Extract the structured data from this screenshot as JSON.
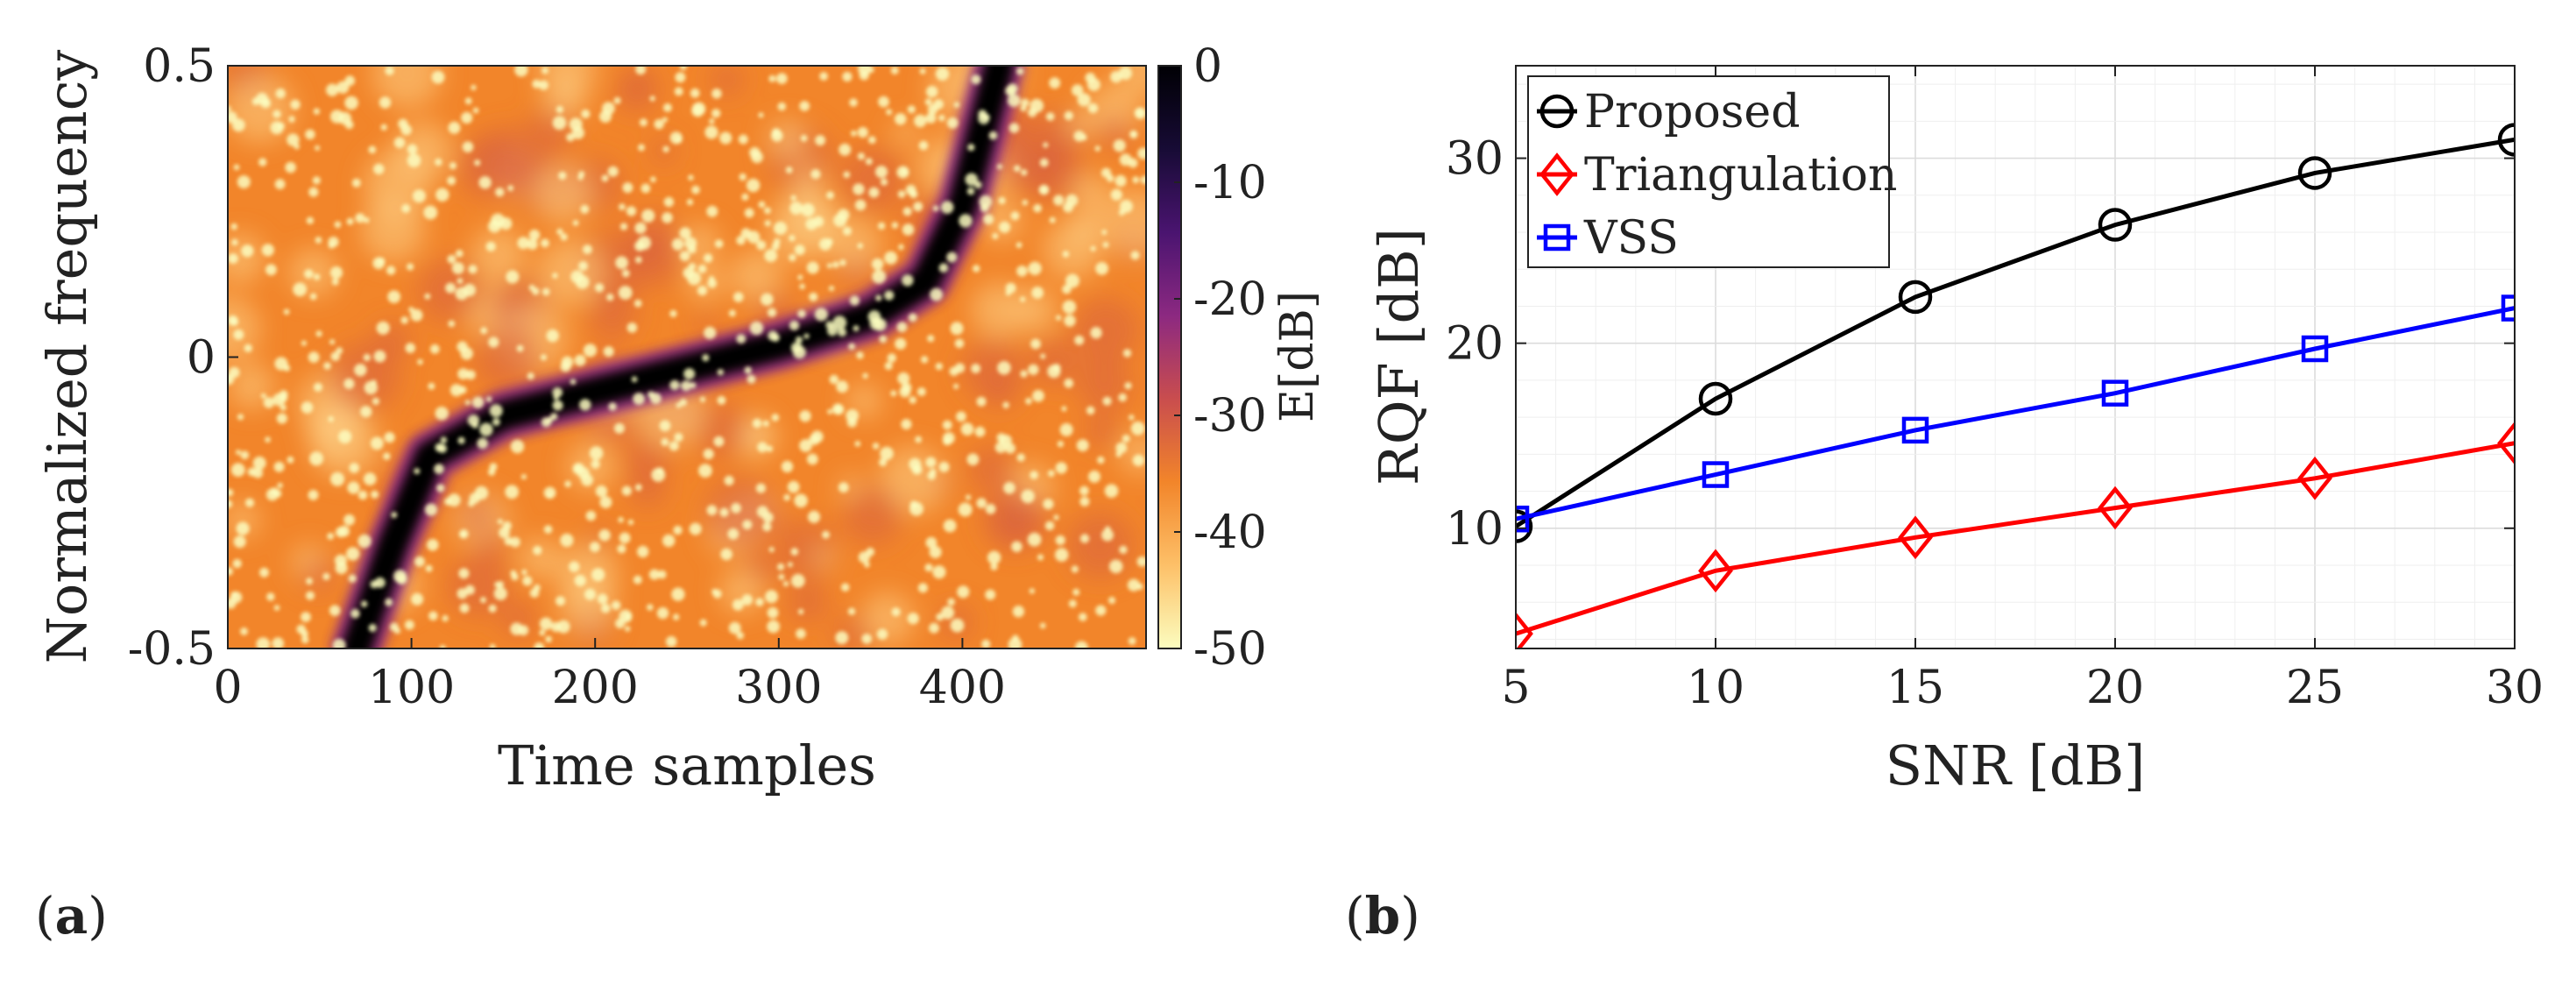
{
  "panel_labels": {
    "a": "a",
    "b": "b"
  },
  "chart_data": [
    {
      "type": "heatmap",
      "panel": "a",
      "title": "",
      "xlabel": "Time samples",
      "ylabel": "Normalized frequency",
      "xlim": [
        0,
        500
      ],
      "ylim": [
        -0.5,
        0.5
      ],
      "xticks": [
        0,
        100,
        200,
        300,
        400
      ],
      "yticks": [
        -0.5,
        0,
        0.5
      ],
      "ytick_labels": [
        "-0.5",
        "0",
        "0.5"
      ],
      "colorbar": {
        "label": "E[dB]",
        "range": [
          -50,
          0
        ],
        "ticks": [
          0,
          -10,
          -20,
          -30,
          -40,
          -50
        ],
        "tick_labels": [
          "0",
          "-10",
          "-20",
          "-30",
          "-40",
          "-50"
        ],
        "colormap": [
          "#fcfdbf",
          "#fdc068",
          "#f2852a",
          "#c94d4e",
          "#8c2981",
          "#4a1470",
          "#170b35",
          "#000004"
        ]
      },
      "ridge": {
        "description_points": [
          {
            "t": 70,
            "f": -0.5
          },
          {
            "t": 90,
            "f": -0.32
          },
          {
            "t": 110,
            "f": -0.17
          },
          {
            "t": 150,
            "f": -0.1
          },
          {
            "t": 200,
            "f": -0.06
          },
          {
            "t": 250,
            "f": -0.02
          },
          {
            "t": 300,
            "f": 0.02
          },
          {
            "t": 350,
            "f": 0.07
          },
          {
            "t": 380,
            "f": 0.13
          },
          {
            "t": 400,
            "f": 0.26
          },
          {
            "t": 420,
            "f": 0.5
          }
        ]
      },
      "background_level_db": -38,
      "speckle_level_db": -50
    },
    {
      "type": "line",
      "panel": "b",
      "title": "",
      "xlabel": "SNR [dB]",
      "ylabel": "RQF [dB]",
      "x": [
        5,
        10,
        15,
        20,
        25,
        30
      ],
      "xlim": [
        5,
        30
      ],
      "ylim": [
        3.5,
        35
      ],
      "xticks": [
        5,
        10,
        15,
        20,
        25,
        30
      ],
      "yticks": [
        10,
        20,
        30
      ],
      "grid": true,
      "legend_position": "top-left",
      "series": [
        {
          "name": "Proposed",
          "values": [
            10.1,
            17.0,
            22.5,
            26.4,
            29.2,
            31.0
          ],
          "color": "#000000",
          "marker": "circle"
        },
        {
          "name": "Triangulation",
          "values": [
            4.3,
            7.7,
            9.5,
            11.1,
            12.7,
            14.6
          ],
          "color": "#ff0000",
          "marker": "diamond"
        },
        {
          "name": "VSS",
          "values": [
            10.5,
            12.9,
            15.3,
            17.3,
            19.7,
            21.9
          ],
          "color": "#0000ff",
          "marker": "square"
        }
      ]
    }
  ]
}
